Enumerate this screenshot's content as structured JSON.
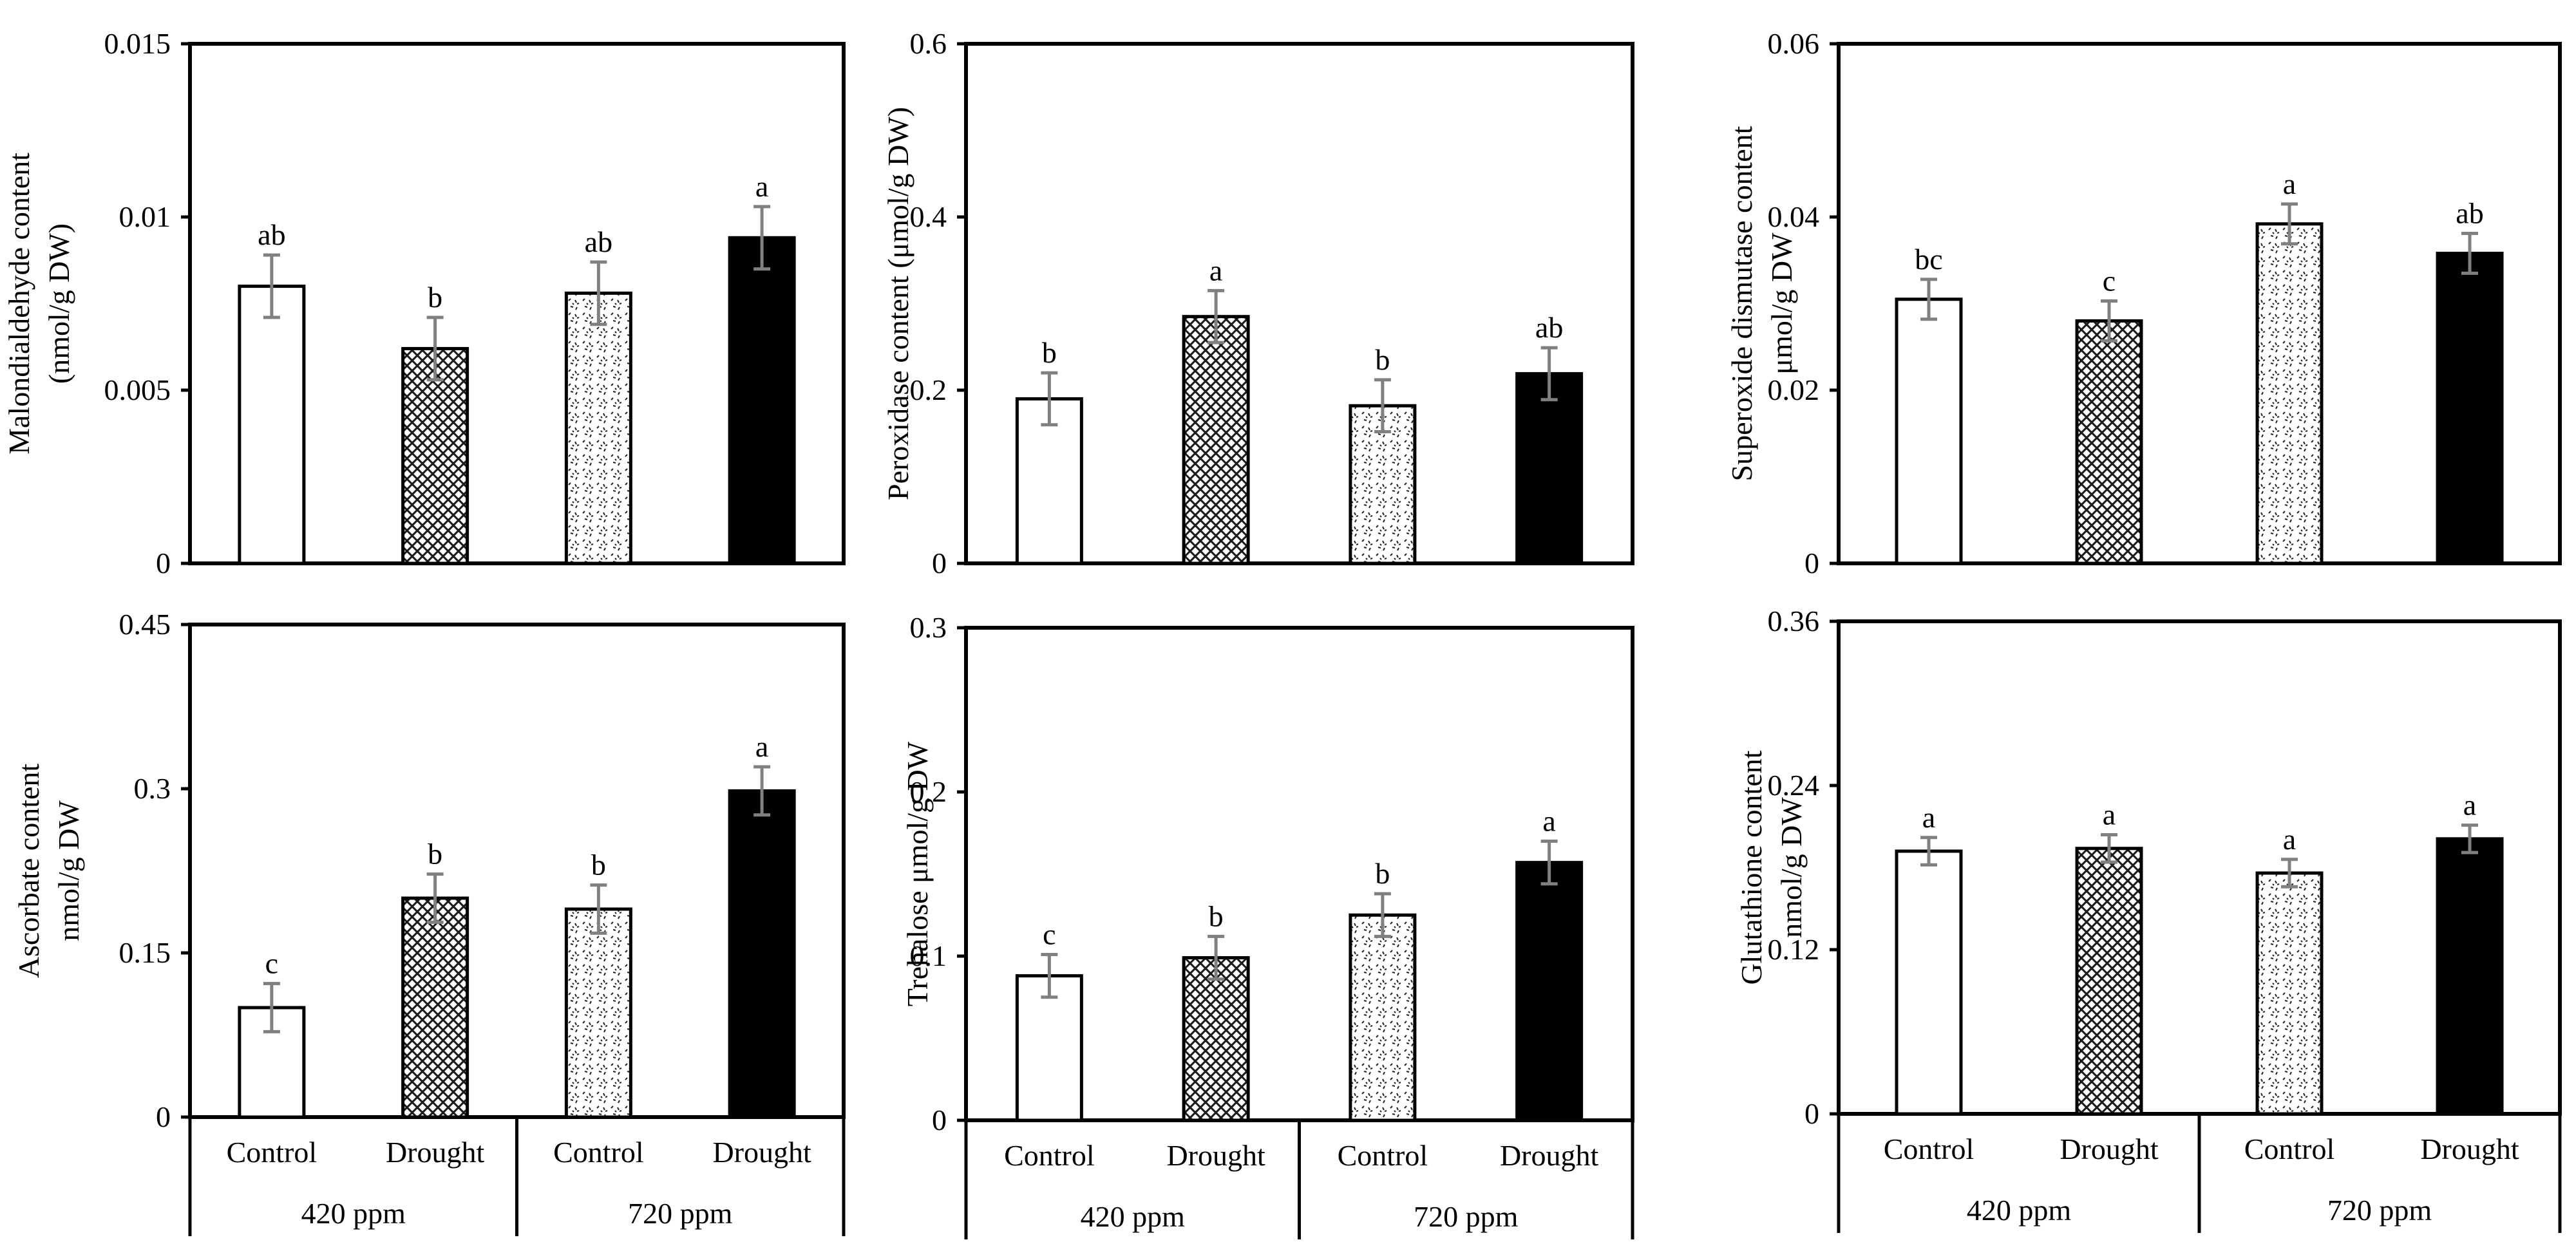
{
  "colors": {
    "axis": "#000000",
    "error_bar": "#808080",
    "bar_fill_drought_720": "#000000",
    "bar_fill_control_420": "#ffffff"
  },
  "chart_data": [
    {
      "type": "bar",
      "ylabel": [
        "Malondialdehyde content",
        "(nmol/g DW)"
      ],
      "ylim": [
        0,
        0.015
      ],
      "yticks": [
        "0",
        "0.005",
        "0.01",
        "0.015"
      ],
      "categories": [
        "Control",
        "Drought",
        "Control",
        "Drought"
      ],
      "groups": [
        "420 ppm",
        "720 ppm"
      ],
      "patterns": [
        "white",
        "crosshatch",
        "dotted",
        "black"
      ],
      "values": [
        0.008,
        0.0062,
        0.0078,
        0.0094
      ],
      "errors": [
        0.0009,
        0.0009,
        0.0009,
        0.0009
      ],
      "letters": [
        "ab",
        "b",
        "ab",
        "a"
      ],
      "show_group_axis": false
    },
    {
      "type": "bar",
      "ylabel": [
        "Peroxidase content (μmol/g DW)"
      ],
      "ylim": [
        0,
        0.6
      ],
      "yticks": [
        "0",
        "0.2",
        "0.4",
        "0.6"
      ],
      "categories": [
        "Control",
        "Drought",
        "Control",
        "Drought"
      ],
      "groups": [
        "420 ppm",
        "720 ppm"
      ],
      "patterns": [
        "white",
        "crosshatch",
        "dotted",
        "black"
      ],
      "values": [
        0.19,
        0.285,
        0.182,
        0.219
      ],
      "errors": [
        0.03,
        0.03,
        0.03,
        0.03
      ],
      "letters": [
        "b",
        "a",
        "b",
        "ab"
      ],
      "show_group_axis": false
    },
    {
      "type": "bar",
      "ylabel": [
        "Superoxide dismutase content",
        "μmol/g DW"
      ],
      "ylim": [
        0,
        0.06
      ],
      "yticks": [
        "0",
        "0.02",
        "0.04",
        "0.06"
      ],
      "categories": [
        "Control",
        "Drought",
        "Control",
        "Drought"
      ],
      "groups": [
        "420 ppm",
        "720 ppm"
      ],
      "patterns": [
        "white",
        "crosshatch",
        "dotted",
        "black"
      ],
      "values": [
        0.0305,
        0.028,
        0.0392,
        0.0358
      ],
      "errors": [
        0.0023,
        0.0023,
        0.0023,
        0.0023
      ],
      "letters": [
        "bc",
        "c",
        "a",
        "ab"
      ],
      "show_group_axis": false
    },
    {
      "type": "bar",
      "ylabel": [
        "Ascorbate content",
        "nmol/g DW"
      ],
      "ylim": [
        0,
        0.45
      ],
      "yticks": [
        "0",
        "0.15",
        "0.3",
        "0.45"
      ],
      "categories": [
        "Control",
        "Drought",
        "Control",
        "Drought"
      ],
      "groups": [
        "420 ppm",
        "720 ppm"
      ],
      "patterns": [
        "white",
        "crosshatch",
        "dotted",
        "black"
      ],
      "values": [
        0.1,
        0.2,
        0.19,
        0.298
      ],
      "errors": [
        0.022,
        0.022,
        0.022,
        0.022
      ],
      "letters": [
        "c",
        "b",
        "b",
        "a"
      ],
      "show_group_axis": true
    },
    {
      "type": "bar",
      "ylabel": [
        "Trehalose μmol/g DW"
      ],
      "ylim": [
        0,
        0.3
      ],
      "yticks": [
        "0",
        "0.1",
        "0.2",
        "0.3"
      ],
      "categories": [
        "Control",
        "Drought",
        "Control",
        "Drought"
      ],
      "groups": [
        "420 ppm",
        "720 ppm"
      ],
      "patterns": [
        "white",
        "crosshatch",
        "dotted",
        "black"
      ],
      "values": [
        0.088,
        0.099,
        0.125,
        0.157
      ],
      "errors": [
        0.013,
        0.013,
        0.013,
        0.013
      ],
      "letters": [
        "c",
        "b",
        "b",
        "a"
      ],
      "show_group_axis": true
    },
    {
      "type": "bar",
      "ylabel": [
        "Glutathione content",
        "nmol/g DW"
      ],
      "ylim": [
        0,
        0.36
      ],
      "yticks": [
        "0",
        "0.12",
        "0.24",
        "0.36"
      ],
      "categories": [
        "Control",
        "Drought",
        "Control",
        "Drought"
      ],
      "groups": [
        "420 ppm",
        "720 ppm"
      ],
      "patterns": [
        "white",
        "crosshatch",
        "dotted",
        "black"
      ],
      "values": [
        0.192,
        0.194,
        0.176,
        0.201
      ],
      "errors": [
        0.01,
        0.01,
        0.01,
        0.01
      ],
      "letters": [
        "a",
        "a",
        "a",
        "a"
      ],
      "show_group_axis": true
    }
  ]
}
